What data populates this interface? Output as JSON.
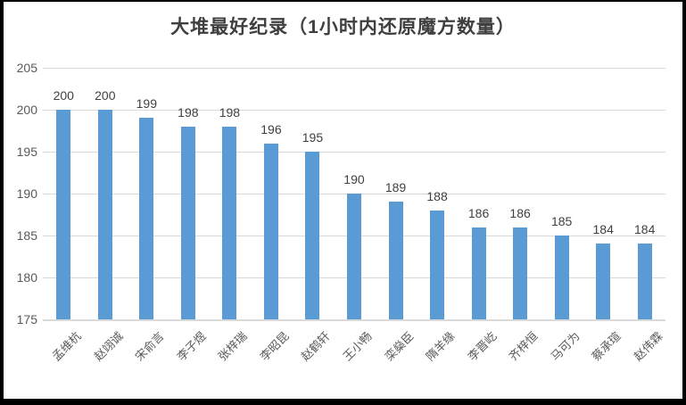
{
  "chart_data": {
    "type": "bar",
    "title": "大堆最好纪录（1小时内还原魔方数量）",
    "categories": [
      "孟维杭",
      "赵翊诚",
      "宋俞言",
      "李子煜",
      "张梓瑞",
      "李昭昆",
      "赵鹤轩",
      "王小畅",
      "栾燊臣",
      "隋羊缘",
      "李晋屹",
      "齐梓恒",
      "马可为",
      "蔡承瑄",
      "赵伟霖"
    ],
    "values": [
      200,
      200,
      199,
      198,
      198,
      196,
      195,
      190,
      189,
      188,
      186,
      186,
      185,
      184,
      184
    ],
    "data_labels": [
      200,
      200,
      199,
      198,
      198,
      196,
      195,
      190,
      189,
      188,
      186,
      186,
      185,
      184,
      184
    ],
    "xlabel": "",
    "ylabel": "",
    "ylim": [
      175,
      205
    ],
    "yticks": [
      175,
      180,
      185,
      190,
      195,
      200,
      205
    ],
    "grid": "horizontal",
    "legend": "none",
    "bar_color": "#5b9bd5",
    "gridline_color": "#d9d9d9",
    "tick_label_color": "#595959",
    "value_label_color": "#404040",
    "title_color": "#3f3f3f",
    "frame_color": "#000000"
  }
}
